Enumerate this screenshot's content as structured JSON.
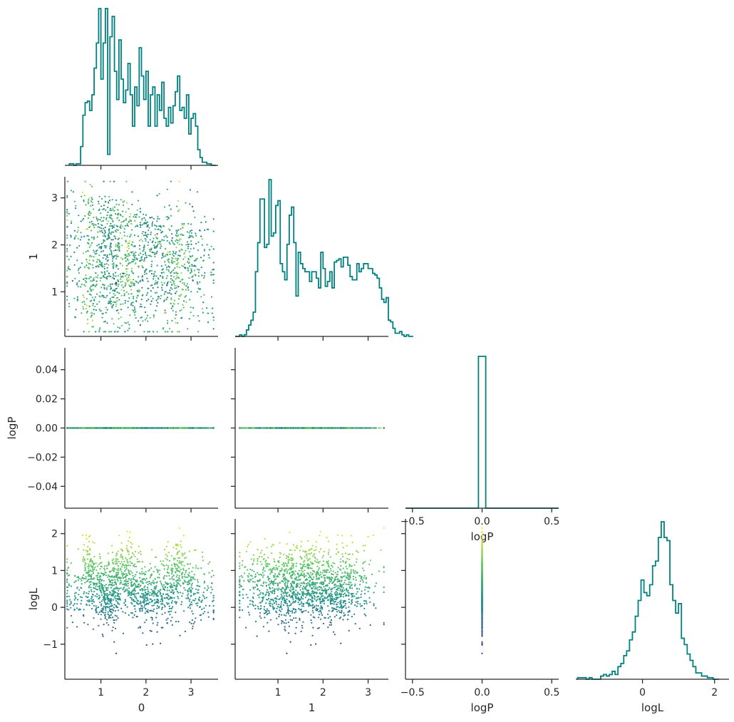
{
  "chart_data": {
    "type": "corner",
    "variables": [
      "0",
      "1",
      "logP",
      "logL"
    ],
    "axis_labels": {
      "x": [
        "0",
        "1",
        "logP",
        "logL"
      ],
      "y": [
        "",
        "1",
        "logP",
        "logL"
      ]
    },
    "ranges": {
      "0": [
        0.2,
        3.6
      ],
      "1": [
        0.05,
        3.45
      ],
      "logP": [
        -0.055,
        0.055
      ],
      "logL": [
        -1.95,
        2.4
      ],
      "logP_hist_x": [
        -0.55,
        0.55
      ],
      "logL_hist_x": [
        -1.85,
        2.4
      ]
    },
    "ticks": {
      "0": [
        1,
        2,
        3
      ],
      "1": [
        1,
        2,
        3
      ],
      "logP": [
        -0.04,
        -0.02,
        0.0,
        0.02,
        0.04
      ],
      "logP_hist_x": [
        -0.5,
        0.0,
        0.5
      ],
      "logL": [
        -1,
        0,
        1,
        2
      ],
      "logL_hist_x": [
        0,
        2
      ]
    },
    "tick_labels": {
      "0": [
        "1",
        "2",
        "3"
      ],
      "1": [
        "1",
        "2",
        "3"
      ],
      "logP": [
        "−0.04",
        "−0.02",
        "0.00",
        "0.02",
        "0.04"
      ],
      "logP_hist_x": [
        "−0.5",
        "0.0",
        "0.5"
      ],
      "logL": [
        "−1",
        "0",
        "1",
        "2"
      ],
      "logL_hist_x": [
        "0",
        "2"
      ]
    },
    "histograms": {
      "0": {
        "start": 0.3,
        "width": 0.05,
        "counts": [
          1,
          1,
          0,
          1,
          1,
          12,
          32,
          40,
          41,
          35,
          45,
          62,
          78,
          100,
          55,
          78,
          100,
          7,
          82,
          95,
          60,
          42,
          80,
          55,
          40,
          48,
          65,
          45,
          25,
          50,
          38,
          75,
          57,
          42,
          60,
          25,
          45,
          50,
          25,
          45,
          35,
          53,
          30,
          25,
          37,
          27,
          38,
          47,
          57,
          35,
          37,
          30,
          45,
          20,
          30,
          33,
          25,
          10,
          5,
          2,
          2,
          1,
          1,
          0,
          0
        ]
      },
      "1": {
        "start": 0.05,
        "width": 0.05,
        "counts": [
          0,
          0,
          1,
          0,
          1,
          4,
          7,
          10,
          15,
          40,
          58,
          85,
          85,
          55,
          57,
          97,
          62,
          64,
          81,
          84,
          45,
          40,
          35,
          57,
          75,
          80,
          58,
          25,
          52,
          45,
          42,
          40,
          40,
          34,
          40,
          40,
          36,
          30,
          52,
          42,
          31,
          34,
          40,
          30,
          46,
          47,
          48,
          43,
          49,
          49,
          44,
          37,
          35,
          35,
          45,
          40,
          42,
          45,
          45,
          42,
          42,
          39,
          38,
          36,
          30,
          23,
          21,
          24,
          10,
          9,
          5,
          2,
          2,
          3,
          1,
          0,
          1,
          0,
          0
        ]
      },
      "logP": {
        "value": 0.0,
        "count": 1500
      },
      "logL": {
        "start": -1.8,
        "width": 0.08,
        "counts": [
          1,
          1,
          1,
          0,
          1,
          0,
          0,
          0,
          2,
          3,
          2,
          3,
          5,
          3,
          8,
          10,
          15,
          18,
          25,
          30,
          40,
          50,
          63,
          55,
          53,
          60,
          72,
          75,
          90,
          100,
          90,
          88,
          60,
          50,
          42,
          48,
          26,
          22,
          16,
          12,
          8,
          4,
          4,
          2,
          2,
          1,
          1,
          0,
          0
        ]
      }
    },
    "scatter": {
      "n_points": 1500,
      "clusters_0": [
        1.0,
        1.55,
        2.65
      ],
      "clusters_1": [
        0.75,
        1.2,
        1.6,
        2.2,
        2.65
      ],
      "colormap": "viridis",
      "color_by": "logL",
      "logP_constant": 0.0
    },
    "colors": {
      "hist": "#008080",
      "viridis": [
        "#440154",
        "#3b528b",
        "#21918c",
        "#5ec962",
        "#fde725"
      ]
    }
  }
}
